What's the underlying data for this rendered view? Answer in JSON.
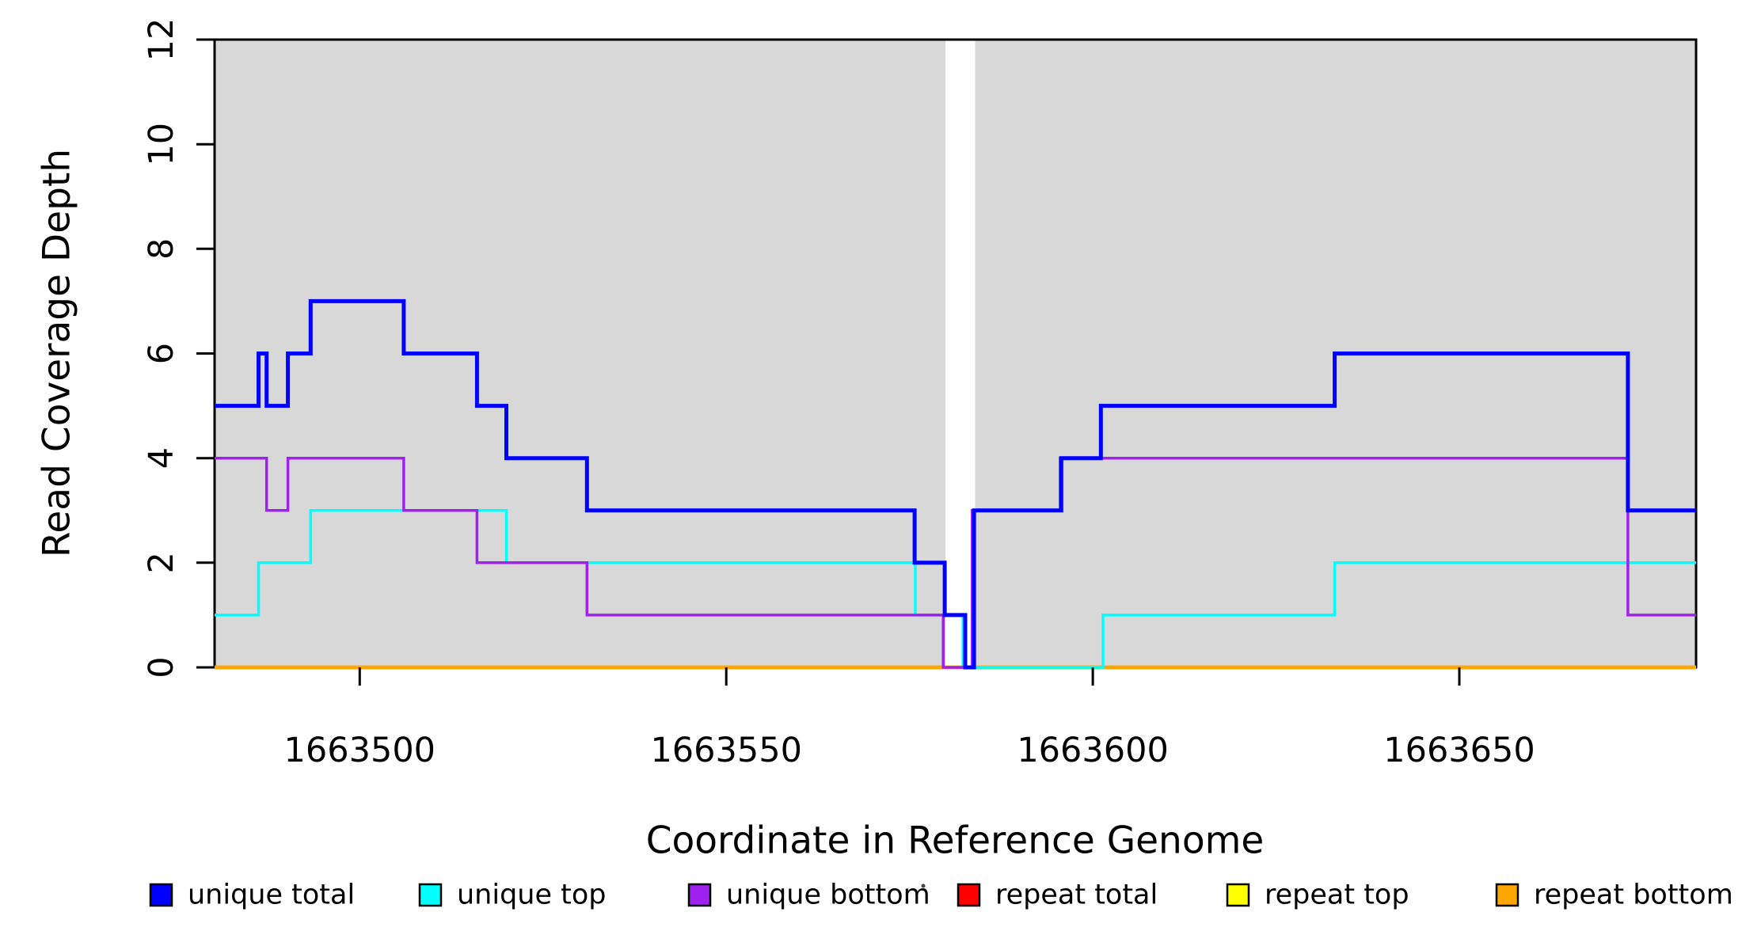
{
  "figure": {
    "kind": "read-coverage-step-plot",
    "background_color": "#FFFFFF",
    "panel_color": "#D8D8D8",
    "border_color": "#000000"
  },
  "chart_data": {
    "type": "line",
    "subtype": "step",
    "title": "",
    "xlabel": "Coordinate in Reference Genome",
    "ylabel": "Read Coverage Depth",
    "x_range": [
      1663480.2,
      1663682.3
    ],
    "y_range": [
      0,
      12
    ],
    "grid": "off",
    "x_ticks": [
      {
        "value": 1663500,
        "label": "1663500"
      },
      {
        "value": 1663550,
        "label": "1663550"
      },
      {
        "value": 1663600,
        "label": "1663600"
      },
      {
        "value": 1663650,
        "label": "1663650"
      }
    ],
    "y_ticks": [
      {
        "value": 0,
        "label": "0"
      },
      {
        "value": 2,
        "label": "2"
      },
      {
        "value": 4,
        "label": "4"
      },
      {
        "value": 6,
        "label": "6"
      },
      {
        "value": 8,
        "label": "8"
      },
      {
        "value": 10,
        "label": "10"
      },
      {
        "value": 12,
        "label": "12"
      }
    ],
    "shaded_regions": [
      {
        "x_start": 1663480.2,
        "x_end": 1663579.9,
        "color": "#D8D8D8"
      },
      {
        "x_start": 1663583.95,
        "x_end": 1663682.3,
        "color": "#D8D8D8"
      }
    ],
    "gap_region": {
      "x_start": 1663579.9,
      "x_end": 1663583.95,
      "color": "#FFFFFF"
    },
    "series": [
      {
        "name": "repeat total",
        "id": "repeat-total",
        "color": "#FF0000",
        "line_width": 4.5,
        "steps": [
          [
            1663480.2,
            0
          ]
        ],
        "x_end": 1663682.3
      },
      {
        "name": "repeat top",
        "id": "repeat-top",
        "color": "#FFFF00",
        "line_width": 4.5,
        "steps": [
          [
            1663480.2,
            0
          ]
        ],
        "x_end": 1663682.3
      },
      {
        "name": "repeat bottom",
        "id": "repeat-bottom",
        "color": "#FFA500",
        "line_width": 4.5,
        "steps": [
          [
            1663480.2,
            0
          ]
        ],
        "x_end": 1663682.3
      },
      {
        "name": "unique top",
        "id": "unique-top",
        "color": "#00FFFF",
        "line_width": 3.5,
        "steps": [
          [
            1663480.2,
            1
          ],
          [
            1663486.2,
            2
          ],
          [
            1663493.3,
            3
          ],
          [
            1663520,
            2
          ],
          [
            1663575.8,
            1
          ],
          [
            1663582.3,
            0
          ],
          [
            1663601.4,
            1
          ],
          [
            1663633,
            2
          ]
        ],
        "x_end": 1663682.3
      },
      {
        "name": "unique bottom",
        "id": "unique-bottom",
        "color": "#A020F0",
        "line_width": 3.5,
        "steps": [
          [
            1663480.2,
            4
          ],
          [
            1663487.3,
            3
          ],
          [
            1663490.2,
            4
          ],
          [
            1663506,
            3
          ],
          [
            1663516,
            2
          ],
          [
            1663531,
            1
          ],
          [
            1663579.6,
            0
          ],
          [
            1663583.55,
            3
          ],
          [
            1663595.55,
            4
          ],
          [
            1663673,
            1
          ]
        ],
        "x_end": 1663682.3
      },
      {
        "name": "unique total",
        "id": "unique-total",
        "color": "#0000FF",
        "line_width": 5,
        "steps": [
          [
            1663480.2,
            5
          ],
          [
            1663486.2,
            6
          ],
          [
            1663487.3,
            5
          ],
          [
            1663490.2,
            6
          ],
          [
            1663493.3,
            7
          ],
          [
            1663506,
            6
          ],
          [
            1663516,
            5
          ],
          [
            1663520,
            4
          ],
          [
            1663531,
            3
          ],
          [
            1663575.7,
            2
          ],
          [
            1663579.8,
            1
          ],
          [
            1663582.6,
            0
          ],
          [
            1663583.8,
            3
          ],
          [
            1663595.7,
            4
          ],
          [
            1663601.1,
            5
          ],
          [
            1663633,
            6
          ],
          [
            1663673,
            3
          ]
        ],
        "x_end": 1663682.3
      }
    ],
    "legend": {
      "position": "bottom",
      "items": [
        {
          "label": "unique total",
          "color": "#0000FF"
        },
        {
          "label": "unique top",
          "color": "#00FFFF"
        },
        {
          "label": "unique bottom",
          "color": "#A020F0"
        },
        {
          "label": "repeat total",
          "color": "#FF0000"
        },
        {
          "label": "repeat top",
          "color": "#FFFF00"
        },
        {
          "label": "repeat bottom",
          "color": "#FFA500"
        }
      ],
      "stray_mark": true
    }
  }
}
